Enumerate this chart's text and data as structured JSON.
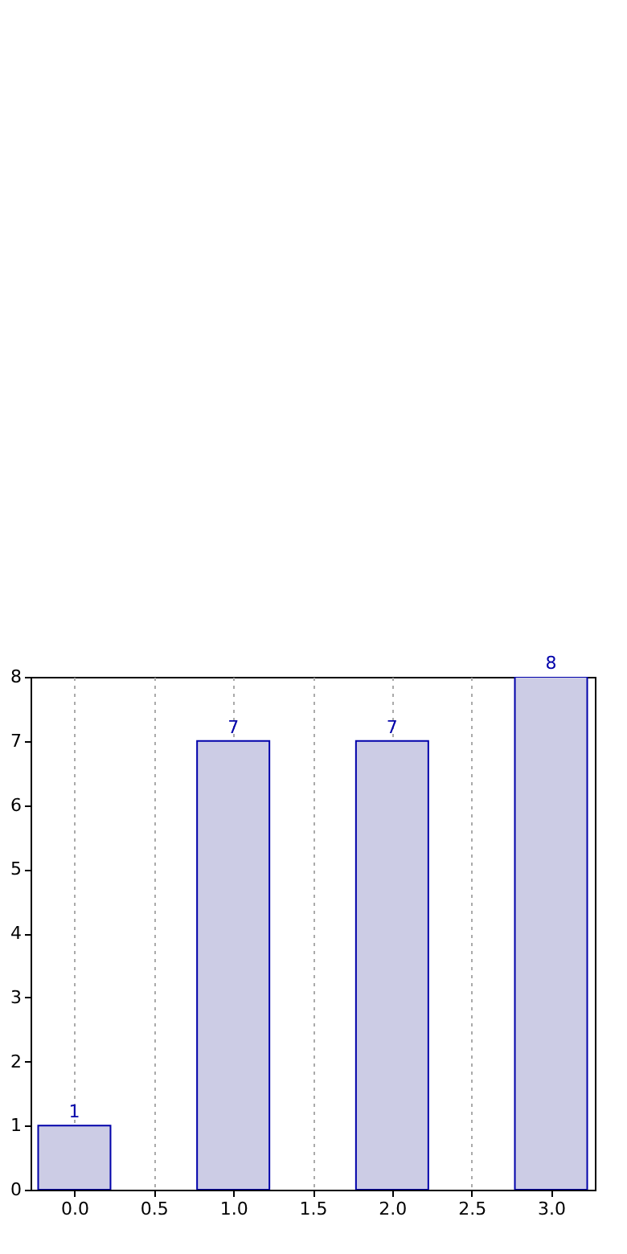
{
  "chart_data": {
    "type": "bar",
    "x": [
      0,
      1,
      2,
      3
    ],
    "values": [
      1,
      7,
      7,
      8
    ],
    "color": "#cccce5",
    "xlim": [
      -0.225,
      3.225
    ],
    "xticks": [
      {
        "value": 0,
        "label": "0.0"
      },
      {
        "value": 0.5,
        "label": "0.5"
      },
      {
        "value": 1,
        "label": "1.0"
      },
      {
        "value": 1.5,
        "label": "1.5"
      },
      {
        "value": 2,
        "label": "2.0"
      },
      {
        "value": 2.5,
        "label": "2.5"
      },
      {
        "value": 3,
        "label": "3.0"
      }
    ],
    "ylim": [
      0,
      8
    ],
    "yticks": [
      0,
      1,
      2,
      3,
      4,
      5,
      6,
      7,
      8
    ],
    "grid": "x",
    "data_labels": true
  }
}
